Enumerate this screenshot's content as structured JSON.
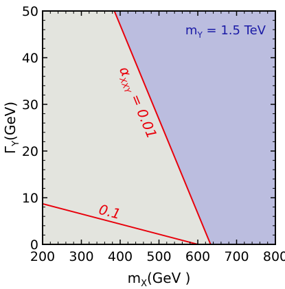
{
  "chart_data": {
    "type": "area",
    "xlim": [
      200,
      800
    ],
    "ylim": [
      0,
      50
    ],
    "x_ticks": [
      200,
      300,
      400,
      500,
      600,
      700,
      800
    ],
    "y_ticks": [
      0,
      10,
      20,
      30,
      40,
      50
    ],
    "xlabel": {
      "main": "m",
      "sub": "X",
      "rest": "(GeV )"
    },
    "ylabel": {
      "main": "Γ",
      "sub": "Y",
      "rest": "(GeV)"
    },
    "annotation": {
      "main": "m",
      "sub": "Y",
      "rest": " = 1.5 TeV"
    },
    "regions": [
      {
        "name": "blue-region",
        "color": "#bbbddf",
        "points": [
          [
            385,
            50
          ],
          [
            800,
            50
          ],
          [
            800,
            0
          ],
          [
            633,
            0
          ]
        ]
      },
      {
        "name": "gray-region",
        "color": "#e3e4de",
        "points": [
          [
            200,
            50
          ],
          [
            385,
            50
          ],
          [
            633,
            0
          ],
          [
            200,
            0
          ]
        ]
      }
    ],
    "series": [
      {
        "label": {
          "main": "α",
          "sub": "XXY",
          "rest": " = 0.01"
        },
        "color": "#e8000b",
        "x": [
          385,
          633
        ],
        "y": [
          50,
          0
        ],
        "label_at": [
          435,
          30
        ]
      },
      {
        "label": {
          "main": "0.1",
          "sub": "",
          "rest": ""
        },
        "color": "#e8000b",
        "x": [
          200,
          600
        ],
        "y": [
          8.7,
          0
        ],
        "label_at": [
          370,
          6
        ]
      }
    ],
    "grid": false,
    "frame_color": "#000000"
  }
}
